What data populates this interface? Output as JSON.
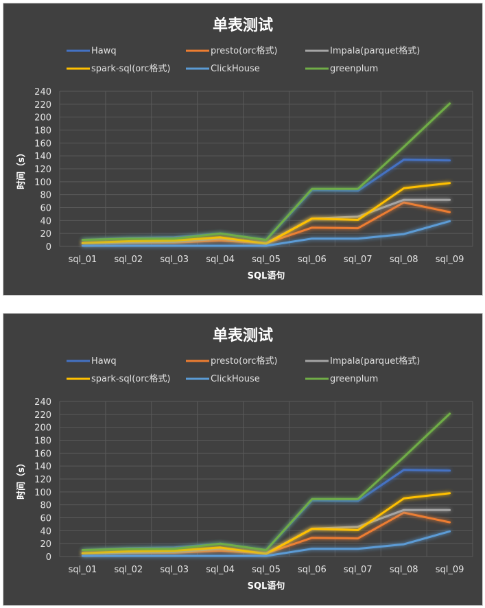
{
  "colors": {
    "Hawq": "#4472c4",
    "presto": "#ed7d31",
    "impala": "#a5a5a5",
    "spark": "#ffc000",
    "clickhouse": "#5b9bd5",
    "greenplum": "#70ad47"
  },
  "chart_data": [
    {
      "type": "line",
      "title": "单表测试",
      "xlabel": "SQL语句",
      "ylabel": "时间（s）",
      "ylim": [
        0,
        240
      ],
      "yticks": [
        "0",
        "20",
        "40",
        "60",
        "80",
        "100",
        "120",
        "140",
        "160",
        "180",
        "200",
        "220",
        "240"
      ],
      "grid": true,
      "legend_position": "top",
      "categories": [
        "sql_01",
        "sql_02",
        "sql_03",
        "sql_04",
        "sql_05",
        "sql_06",
        "sql_07",
        "sql_08",
        "sql_09"
      ],
      "series": [
        {
          "name": "Hawq",
          "color": "#4472c4",
          "values": [
            10,
            13,
            14,
            20,
            10,
            87,
            86,
            134,
            133
          ]
        },
        {
          "name": "presto(orc格式)",
          "color": "#ed7d31",
          "values": [
            5,
            6,
            6,
            9,
            5,
            29,
            28,
            68,
            53
          ]
        },
        {
          "name": "Impala(parquet格式)",
          "color": "#a5a5a5",
          "values": [
            5,
            6,
            7,
            12,
            5,
            43,
            46,
            72,
            72
          ]
        },
        {
          "name": "spark-sql(orc格式)",
          "color": "#ffc000",
          "values": [
            5,
            8,
            9,
            14,
            4,
            43,
            41,
            90,
            98
          ]
        },
        {
          "name": "ClickHouse",
          "color": "#5b9bd5",
          "values": [
            1,
            1,
            1,
            1,
            1,
            12,
            12,
            19,
            39
          ]
        },
        {
          "name": "greenplum",
          "color": "#70ad47",
          "values": [
            10,
            12,
            12,
            20,
            10,
            89,
            89,
            154,
            221
          ]
        }
      ]
    },
    {
      "type": "line",
      "title": "单表测试",
      "xlabel": "SQL语句",
      "ylabel": "时间（s）",
      "ylim": [
        0,
        240
      ],
      "yticks": [
        "0",
        "20",
        "40",
        "60",
        "80",
        "100",
        "120",
        "140",
        "160",
        "180",
        "200",
        "220",
        "240"
      ],
      "grid": true,
      "legend_position": "top",
      "categories": [
        "sql_01",
        "sql_02",
        "sql_03",
        "sql_04",
        "sql_05",
        "sql_06",
        "sql_07",
        "sql_08",
        "sql_09"
      ],
      "series": [
        {
          "name": "Hawq",
          "color": "#4472c4",
          "values": [
            10,
            13,
            14,
            20,
            10,
            87,
            86,
            134,
            133
          ]
        },
        {
          "name": "presto(orc格式)",
          "color": "#ed7d31",
          "values": [
            5,
            6,
            6,
            9,
            5,
            29,
            28,
            68,
            53
          ]
        },
        {
          "name": "Impala(parquet格式)",
          "color": "#a5a5a5",
          "values": [
            5,
            6,
            7,
            12,
            5,
            43,
            46,
            72,
            72
          ]
        },
        {
          "name": "spark-sql(orc格式)",
          "color": "#ffc000",
          "values": [
            5,
            8,
            9,
            14,
            4,
            43,
            41,
            90,
            98
          ]
        },
        {
          "name": "ClickHouse",
          "color": "#5b9bd5",
          "values": [
            1,
            1,
            1,
            1,
            1,
            12,
            12,
            19,
            39
          ]
        },
        {
          "name": "greenplum",
          "color": "#70ad47",
          "values": [
            10,
            12,
            12,
            20,
            10,
            89,
            89,
            154,
            221
          ]
        }
      ]
    }
  ]
}
